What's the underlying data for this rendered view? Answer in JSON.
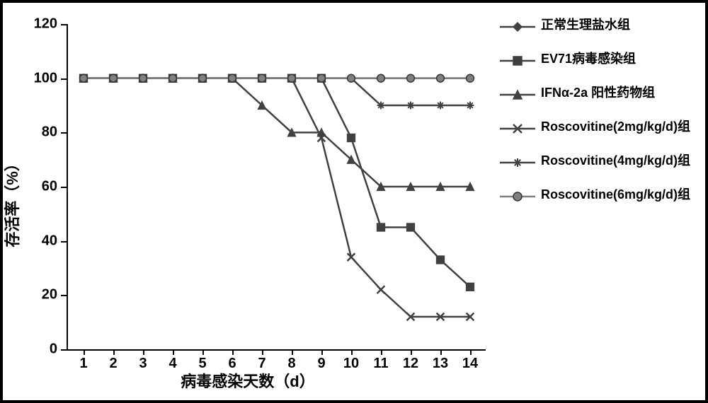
{
  "chart": {
    "type": "line",
    "xlabel": "病毒感染天数（d）",
    "ylabel": "存活率（%）",
    "xlim": [
      1,
      14
    ],
    "ylim": [
      0,
      120
    ],
    "ytick_step": 20,
    "xtick_step": 1,
    "line_width": 2.5,
    "marker_size": 9,
    "background_color": "#ffffff",
    "axis_color": "#000000",
    "font_size_labels": 22,
    "font_size_ticks": 20,
    "categories": [
      1,
      2,
      3,
      4,
      5,
      6,
      7,
      8,
      9,
      10,
      11,
      12,
      13,
      14
    ],
    "series": [
      {
        "name": "正常生理盐水组",
        "marker": "diamond",
        "color": "#404040",
        "values": [
          100,
          100,
          100,
          100,
          100,
          100,
          100,
          100,
          100,
          100,
          100,
          100,
          100,
          100
        ]
      },
      {
        "name": "EV71病毒感染组",
        "marker": "square",
        "color": "#404040",
        "values": [
          100,
          100,
          100,
          100,
          100,
          100,
          100,
          100,
          100,
          78,
          45,
          45,
          33,
          23
        ]
      },
      {
        "name": "IFNα-2a 阳性药物组",
        "marker": "triangle",
        "color": "#404040",
        "values": [
          100,
          100,
          100,
          100,
          100,
          100,
          90,
          80,
          80,
          70,
          60,
          60,
          60,
          60
        ]
      },
      {
        "name": "Roscovitine(2mg/kg/d)组",
        "marker": "x",
        "color": "#404040",
        "values": [
          100,
          100,
          100,
          100,
          100,
          100,
          100,
          100,
          78,
          34,
          22,
          12,
          12,
          12
        ]
      },
      {
        "name": "Roscovitine(4mg/kg/d)组",
        "marker": "asterisk",
        "color": "#404040",
        "values": [
          100,
          100,
          100,
          100,
          100,
          100,
          100,
          100,
          100,
          100,
          90,
          90,
          90,
          90
        ]
      },
      {
        "name": "Roscovitine(6mg/kg/d)组",
        "marker": "circle",
        "color": "#808080",
        "values": [
          100,
          100,
          100,
          100,
          100,
          100,
          100,
          100,
          100,
          100,
          100,
          100,
          100,
          100
        ]
      }
    ]
  }
}
